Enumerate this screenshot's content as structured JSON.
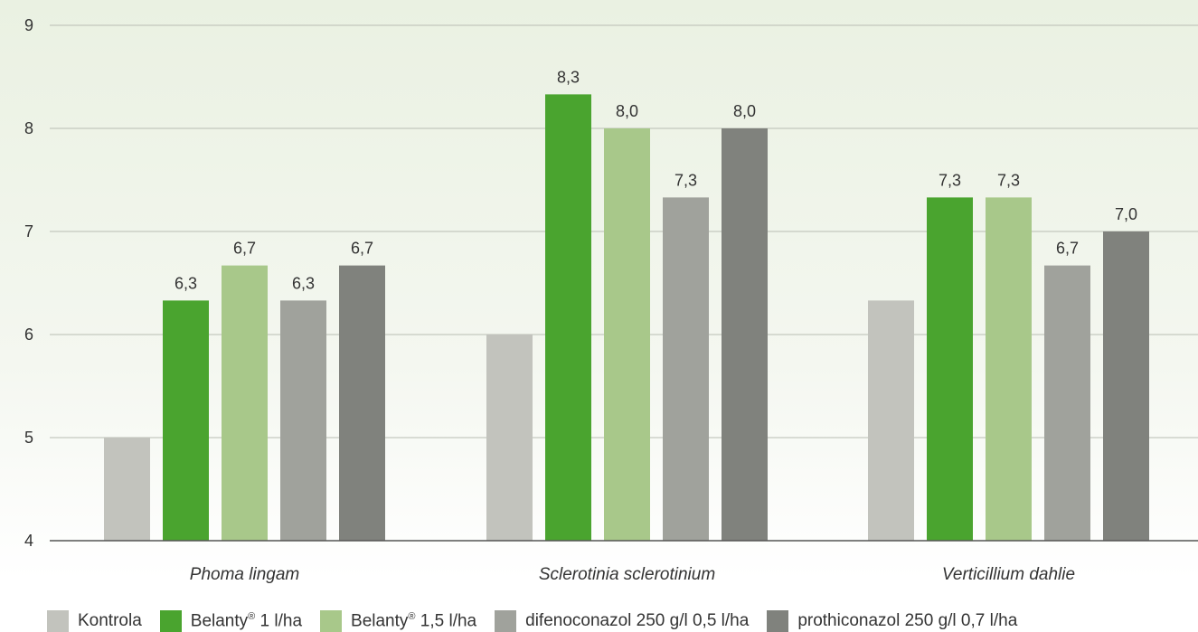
{
  "chart_data": {
    "type": "bar",
    "categories": [
      "Phoma lingam",
      "Sclerotinia sclerotinium",
      "Verticillium dahlie"
    ],
    "series": [
      {
        "name": "Kontrola",
        "color": "#c2c3bd",
        "values": [
          5.0,
          6.0,
          6.33
        ],
        "labels": [
          "",
          "",
          ""
        ]
      },
      {
        "name": "Belanty® 1 l/ha",
        "color": "#4aa42f",
        "values": [
          6.33,
          8.33,
          7.33
        ],
        "labels": [
          "6,3",
          "8,3",
          "7,3"
        ]
      },
      {
        "name": "Belanty® 1,5 l/ha",
        "color": "#a8c88a",
        "values": [
          6.67,
          8.0,
          7.33
        ],
        "labels": [
          "6,7",
          "8,0",
          "7,3"
        ]
      },
      {
        "name": "difenoconazol 250 g/l 0,5 l/ha",
        "color": "#a0a29c",
        "values": [
          6.33,
          7.33,
          6.67
        ],
        "labels": [
          "6,3",
          "7,3",
          "6,7"
        ]
      },
      {
        "name": "prothiconazol 250 g/l 0,7 l/ha",
        "color": "#80827d",
        "values": [
          6.67,
          8.0,
          7.0
        ],
        "labels": [
          "6,7",
          "8,0",
          "7,0"
        ]
      }
    ],
    "yticks": [
      "4",
      "5",
      "6",
      "7",
      "8",
      "9"
    ],
    "ylim": [
      4,
      9
    ],
    "grid": true,
    "legend_position": "bottom",
    "title": "",
    "xlabel": "",
    "ylabel": ""
  },
  "legend": {
    "kontrola": "Kontrola",
    "belanty1_a": "Belanty",
    "belanty1_sup": "®",
    "belanty1_b": " 1 l/ha",
    "belanty15_a": "Belanty",
    "belanty15_sup": "®",
    "belanty15_b": " 1,5 l/ha",
    "difeno": "difenoconazol 250 g/l 0,5 l/ha",
    "prothio": "prothiconazol 250 g/l 0,7 l/ha"
  }
}
